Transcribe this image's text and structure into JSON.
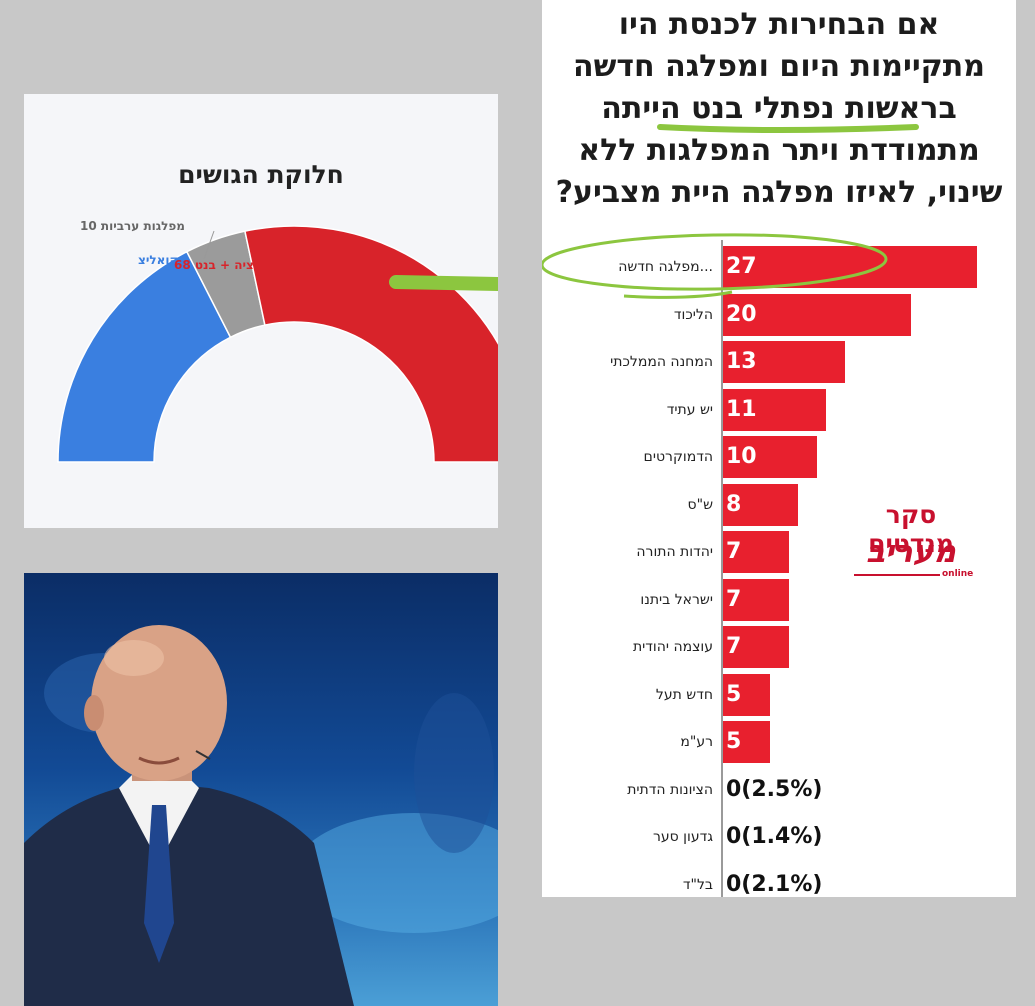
{
  "donut_panel": {
    "title": "חלוקת הגושים",
    "labels": {
      "arab": "מפלגות ערביות 10",
      "coalition": "קואליצ",
      "opposition": "ציה + בנט 68"
    },
    "colors": {
      "coalition": "#3a7fe0",
      "arab": "#9b9b9b",
      "opposition": "#d8232a",
      "highlight": "#8cc63f"
    }
  },
  "chart_data": [
    {
      "type": "pie",
      "title": "חלוקת הגושים",
      "categories": [
        "קואליצ",
        "מפלגות ערביות",
        "ציה + בנט"
      ],
      "values": [
        42,
        10,
        68
      ],
      "colors": [
        "#3a7fe0",
        "#9b9b9b",
        "#d8232a"
      ]
    },
    {
      "type": "bar",
      "title": "אם הבחירות לכנסת היו מתקיימות היום ומפלגה חדשה בראשות נפתלי בנט הייתה מתמודדת ויתר המפלגות ללא שינוי, לאיזו מפלגה היית מצביע?",
      "categories": [
        "...מפלגה חדשה",
        "הליכוד",
        "המחנה הממלכתי",
        "יש עתיד",
        "הדמוקרטים",
        "ש\"ס",
        "יהדות התורה",
        "ישראל ביתנו",
        "עוצמה יהודית",
        "חדש תעל",
        "רע\"מ",
        "הציונות הדתית",
        "גדעון סער",
        "בל\"ד"
      ],
      "values": [
        27,
        20,
        13,
        11,
        10,
        8,
        7,
        7,
        7,
        5,
        5,
        0,
        0,
        0
      ],
      "value_labels": [
        "27",
        "20",
        "13",
        "11",
        "10",
        "8",
        "7",
        "7",
        "7",
        "5",
        "5",
        "0(2.5%)",
        "0(1.4%)",
        "0(2.1%)"
      ],
      "bar_color": "#e8202e"
    }
  ],
  "poll_panel": {
    "headline_lines": [
      "אם הבחירות לכנסת היו",
      "מתקיימות היום ומפלגה חדשה",
      "בראשות נפתלי בנט הייתה",
      "מתמודדת ויתר המפלגות ללא",
      "שינוי, לאיזו מפלגה היית מצביע?"
    ],
    "brand": {
      "survey": "סקר מנדטים",
      "logo": "מעריב",
      "sub": "online"
    }
  }
}
